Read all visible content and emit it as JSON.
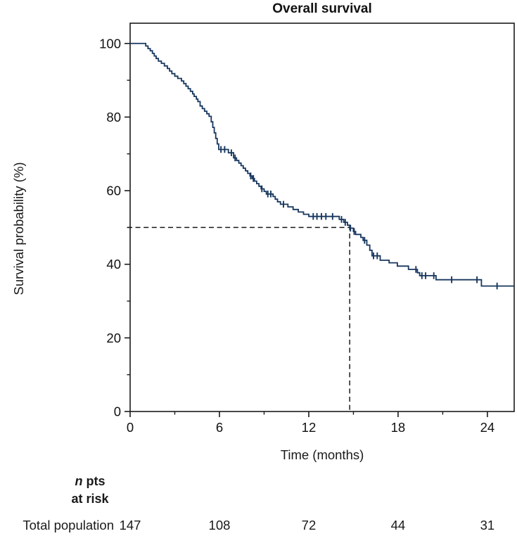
{
  "chart_data": {
    "type": "line",
    "subtype": "kaplan-meier-step",
    "title": "Overall survival",
    "xlabel": "Time (months)",
    "ylabel": "Survival probability (%)",
    "xlim": [
      0,
      25.8
    ],
    "ylim": [
      0,
      105.5
    ],
    "x_ticks_major": [
      0,
      6,
      12,
      18,
      24
    ],
    "x_ticks_minor": [
      3,
      9,
      15,
      21
    ],
    "y_ticks_major": [
      0,
      20,
      40,
      60,
      80,
      100
    ],
    "y_ticks_minor": [
      10,
      30,
      50,
      70,
      90
    ],
    "grid": false,
    "curve_color": "#17375e",
    "axis_color": "#1a1a1a",
    "median_dash_color": "#1a1a1a",
    "series": [
      {
        "name": "Total population",
        "start": [
          0,
          100
        ],
        "drops": [
          [
            1.05,
            99.3
          ],
          [
            1.2,
            98.6
          ],
          [
            1.35,
            98.0
          ],
          [
            1.5,
            97.3
          ],
          [
            1.62,
            96.6
          ],
          [
            1.75,
            95.9
          ],
          [
            1.9,
            95.2
          ],
          [
            2.1,
            94.6
          ],
          [
            2.3,
            93.9
          ],
          [
            2.5,
            93.2
          ],
          [
            2.65,
            92.5
          ],
          [
            2.8,
            91.8
          ],
          [
            3.0,
            91.1
          ],
          [
            3.2,
            90.5
          ],
          [
            3.45,
            89.8
          ],
          [
            3.6,
            89.1
          ],
          [
            3.75,
            88.4
          ],
          [
            3.9,
            87.7
          ],
          [
            4.05,
            87.0
          ],
          [
            4.2,
            86.3
          ],
          [
            4.3,
            85.6
          ],
          [
            4.45,
            84.9
          ],
          [
            4.55,
            84.2
          ],
          [
            4.7,
            83.0
          ],
          [
            4.85,
            82.3
          ],
          [
            5.0,
            81.6
          ],
          [
            5.15,
            80.9
          ],
          [
            5.3,
            80.2
          ],
          [
            5.45,
            78.7
          ],
          [
            5.55,
            77.2
          ],
          [
            5.65,
            75.7
          ],
          [
            5.75,
            74.2
          ],
          [
            5.85,
            72.7
          ],
          [
            5.95,
            71.2
          ],
          [
            6.6,
            70.3
          ],
          [
            6.95,
            68.9
          ],
          [
            7.15,
            68.2
          ],
          [
            7.3,
            67.5
          ],
          [
            7.45,
            66.8
          ],
          [
            7.6,
            66.1
          ],
          [
            7.75,
            65.4
          ],
          [
            7.9,
            64.7
          ],
          [
            8.05,
            64.0
          ],
          [
            8.2,
            63.3
          ],
          [
            8.35,
            62.6
          ],
          [
            8.5,
            61.9
          ],
          [
            8.65,
            61.2
          ],
          [
            8.8,
            60.5
          ],
          [
            9.0,
            59.8
          ],
          [
            9.15,
            59.1
          ],
          [
            9.6,
            58.4
          ],
          [
            9.75,
            57.7
          ],
          [
            9.9,
            57.0
          ],
          [
            10.1,
            56.3
          ],
          [
            10.6,
            55.6
          ],
          [
            10.95,
            54.9
          ],
          [
            11.3,
            54.2
          ],
          [
            11.65,
            53.6
          ],
          [
            12.0,
            53.0
          ],
          [
            14.05,
            52.2
          ],
          [
            14.35,
            51.4
          ],
          [
            14.6,
            50.6
          ],
          [
            14.75,
            49.8
          ],
          [
            15.0,
            48.9
          ],
          [
            15.15,
            48.1
          ],
          [
            15.5,
            47.3
          ],
          [
            15.65,
            46.5
          ],
          [
            15.9,
            45.2
          ],
          [
            16.1,
            43.8
          ],
          [
            16.25,
            42.3
          ],
          [
            16.8,
            41.1
          ],
          [
            17.4,
            40.4
          ],
          [
            17.95,
            39.5
          ],
          [
            18.7,
            38.6
          ],
          [
            19.3,
            37.7
          ],
          [
            19.45,
            36.9
          ],
          [
            20.55,
            35.8
          ],
          [
            23.6,
            34.1
          ]
        ],
        "censors": [
          [
            6.1,
            71.2
          ],
          [
            6.35,
            71.2
          ],
          [
            6.8,
            70.3
          ],
          [
            7.05,
            68.9
          ],
          [
            8.1,
            64.0
          ],
          [
            8.28,
            63.3
          ],
          [
            8.85,
            60.5
          ],
          [
            9.25,
            59.1
          ],
          [
            9.45,
            59.1
          ],
          [
            10.3,
            56.3
          ],
          [
            12.3,
            53.0
          ],
          [
            12.55,
            53.0
          ],
          [
            12.85,
            53.0
          ],
          [
            13.15,
            53.0
          ],
          [
            13.6,
            53.0
          ],
          [
            14.2,
            52.2
          ],
          [
            14.45,
            51.4
          ],
          [
            14.8,
            49.8
          ],
          [
            15.05,
            48.9
          ],
          [
            15.75,
            46.5
          ],
          [
            16.35,
            42.3
          ],
          [
            16.6,
            42.3
          ],
          [
            19.2,
            38.6
          ],
          [
            19.6,
            36.9
          ],
          [
            19.85,
            36.9
          ],
          [
            20.4,
            36.9
          ],
          [
            21.6,
            35.8
          ],
          [
            23.3,
            35.8
          ],
          [
            24.65,
            34.1
          ]
        ]
      }
    ],
    "median_annotation": {
      "time": 14.75,
      "survival": 50
    }
  },
  "risk_table": {
    "header_n": "n",
    "header_pts": "pts",
    "header_line2": "at risk",
    "row_label": "Total population",
    "times": [
      0,
      6,
      12,
      18,
      24
    ],
    "counts": [
      "147",
      "108",
      "72",
      "44",
      "31"
    ]
  }
}
